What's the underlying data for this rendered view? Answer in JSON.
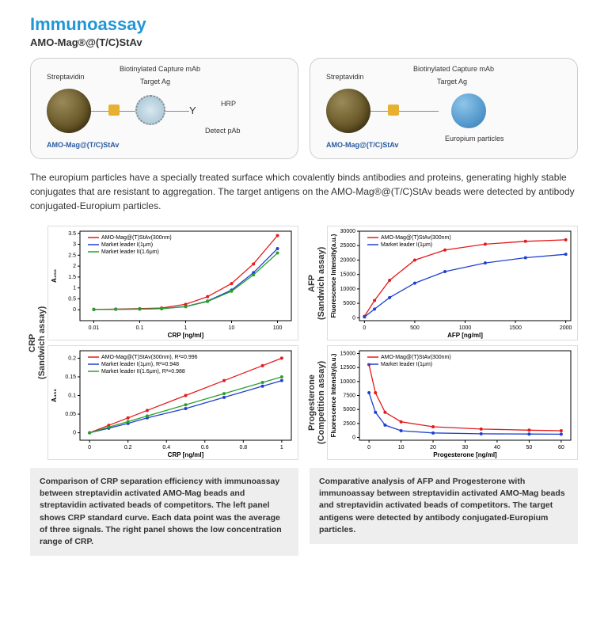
{
  "title": "Immunoassay",
  "subtitle": "AMO-Mag®@(T/C)StAv",
  "diagram_labels": {
    "streptavidin": "Streptavidin",
    "capture": "Biotinylated Capture mAb",
    "target": "Target Ag",
    "hrp": "HRP",
    "detect": "Detect pAb",
    "product": "AMO-Mag@(T/C)StAv",
    "europium": "Europium particles"
  },
  "body_text": "The europium particles have a specially treated surface which covalently binds antibodies and proteins, generating highly stable conjugates that are resistant to aggregation. The target antigens on the AMO-Mag®@(T/C)StAv beads were detected by antibody conjugated-Europium particles.",
  "colors": {
    "series_red": "#e41a1c",
    "series_blue": "#2040d0",
    "series_green": "#2aa02a",
    "axis": "#000000",
    "grid": "#ffffff",
    "chart_border": "#dddddd"
  },
  "crp_top": {
    "type": "line-log-x",
    "xlabel": "CRP [ng/ml]",
    "ylabel": "A₄₅₀",
    "xlim": [
      0.005,
      200
    ],
    "ylim": [
      -0.5,
      3.6
    ],
    "yticks": [
      0.0,
      0.5,
      1.0,
      1.5,
      2.0,
      2.5,
      3.0,
      3.5
    ],
    "xticks": [
      0.01,
      0.1,
      1,
      10,
      100
    ],
    "legend": [
      "AMO-Mag@(T)StAv(300nm)",
      "Market leader I(1μm)",
      "Market leader II(1.6μm)"
    ],
    "series": [
      {
        "color": "#e41a1c",
        "x": [
          0.01,
          0.03,
          0.1,
          0.3,
          1,
          3,
          10,
          30,
          100
        ],
        "y": [
          0.02,
          0.03,
          0.05,
          0.08,
          0.25,
          0.6,
          1.2,
          2.1,
          3.4
        ]
      },
      {
        "color": "#2040d0",
        "x": [
          0.01,
          0.03,
          0.1,
          0.3,
          1,
          3,
          10,
          30,
          100
        ],
        "y": [
          0.01,
          0.02,
          0.03,
          0.05,
          0.15,
          0.4,
          0.9,
          1.7,
          2.8
        ]
      },
      {
        "color": "#2aa02a",
        "x": [
          0.01,
          0.03,
          0.1,
          0.3,
          1,
          3,
          10,
          30,
          100
        ],
        "y": [
          0.01,
          0.02,
          0.03,
          0.05,
          0.14,
          0.38,
          0.85,
          1.6,
          2.6
        ]
      }
    ]
  },
  "crp_bottom": {
    "type": "line",
    "xlabel": "CRP [ng/ml]",
    "ylabel": "A₄₅₀",
    "xlim": [
      -0.05,
      1.05
    ],
    "ylim": [
      -0.02,
      0.22
    ],
    "yticks": [
      0.0,
      0.05,
      0.1,
      0.15,
      0.2
    ],
    "xticks": [
      0.0,
      0.2,
      0.4,
      0.6,
      0.8,
      1.0
    ],
    "legend": [
      "AMO-Mag@(T)StAv(300nm), R²=0.996",
      "Market leader I(1μm), R²=0.948",
      "Market leader II(1.6μm), R²=0.988"
    ],
    "series": [
      {
        "color": "#e41a1c",
        "x": [
          0,
          0.1,
          0.2,
          0.3,
          0.5,
          0.7,
          0.9,
          1.0
        ],
        "y": [
          0.0,
          0.02,
          0.04,
          0.06,
          0.1,
          0.14,
          0.18,
          0.2
        ]
      },
      {
        "color": "#2040d0",
        "x": [
          0,
          0.1,
          0.2,
          0.3,
          0.5,
          0.7,
          0.9,
          1.0
        ],
        "y": [
          0.0,
          0.012,
          0.025,
          0.04,
          0.065,
          0.095,
          0.125,
          0.14
        ]
      },
      {
        "color": "#2aa02a",
        "x": [
          0,
          0.1,
          0.2,
          0.3,
          0.5,
          0.7,
          0.9,
          1.0
        ],
        "y": [
          0.0,
          0.015,
          0.03,
          0.045,
          0.075,
          0.105,
          0.135,
          0.15
        ]
      }
    ]
  },
  "afp": {
    "type": "line",
    "xlabel": "AFP [ng/ml]",
    "ylabel": "Fluorescence Intensity(a.u.)",
    "xlim": [
      -50,
      2050
    ],
    "ylim": [
      -1000,
      30000
    ],
    "yticks": [
      0,
      5000,
      10000,
      15000,
      20000,
      25000,
      30000
    ],
    "xticks": [
      0,
      500,
      1000,
      1500,
      2000
    ],
    "legend": [
      "AMO-Mag@(T)StAv(300nm)",
      "Market leader I(1μm)"
    ],
    "series": [
      {
        "color": "#e41a1c",
        "x": [
          0,
          100,
          250,
          500,
          800,
          1200,
          1600,
          2000
        ],
        "y": [
          500,
          6000,
          13000,
          20000,
          23500,
          25500,
          26500,
          27000
        ]
      },
      {
        "color": "#2040d0",
        "x": [
          0,
          100,
          250,
          500,
          800,
          1200,
          1600,
          2000
        ],
        "y": [
          300,
          3000,
          7000,
          12000,
          16000,
          19000,
          20800,
          22000
        ]
      }
    ]
  },
  "prog": {
    "type": "line",
    "xlabel": "Progesterone [ng/ml]",
    "ylabel": "Fluorescence Intensity(a.u.)",
    "xlim": [
      -3,
      63
    ],
    "ylim": [
      -500,
      15500
    ],
    "yticks": [
      0,
      2500,
      5000,
      7500,
      10000,
      12500,
      15000
    ],
    "xticks": [
      0,
      10,
      20,
      30,
      40,
      50,
      60
    ],
    "legend": [
      "AMO-Mag@(T)StAv(300nm)",
      "Market leader I(1μm)"
    ],
    "series": [
      {
        "color": "#e41a1c",
        "x": [
          0,
          2,
          5,
          10,
          20,
          35,
          50,
          60
        ],
        "y": [
          13000,
          8000,
          4500,
          2800,
          1900,
          1500,
          1300,
          1200
        ]
      },
      {
        "color": "#2040d0",
        "x": [
          0,
          2,
          5,
          10,
          20,
          35,
          50,
          60
        ],
        "y": [
          8000,
          4500,
          2200,
          1200,
          800,
          650,
          600,
          580
        ]
      }
    ]
  },
  "ylabels": {
    "crp": "CRP\n(Sandwich assay)",
    "afp": "AFP\n(Sandwich assay)",
    "prog": "Progesterone\n(Competition assay)"
  },
  "captions": {
    "left": "Comparison of CRP separation efficiency with immunoassay between streptavidin activated AMO-Mag beads and streptavidin activated beads of competitors. The left panel shows CRP standard curve. Each data point was the average of three signals. The right panel shows the low concentration range of CRP.",
    "right": "Comparative analysis of AFP and Progesterone with immunoassay between streptavidin activated AMO-Mag beads and streptavidin activated beads of competitors. The target antigens were detected by antibody conjugated-Europium particles."
  }
}
